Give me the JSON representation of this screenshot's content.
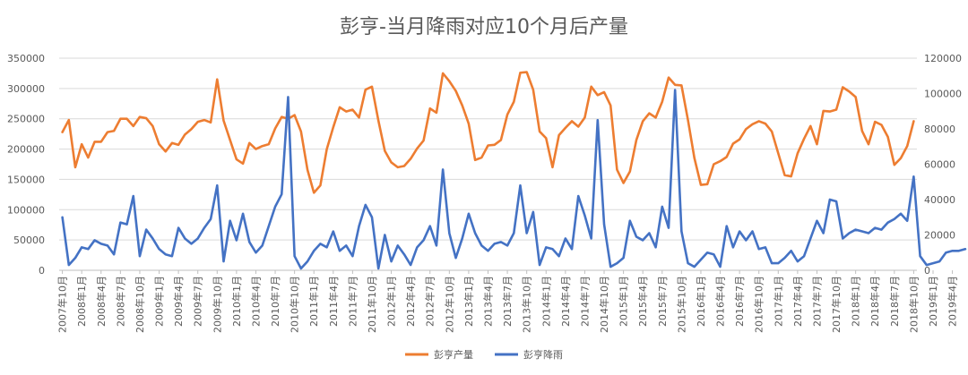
{
  "chart_data": {
    "type": "line",
    "title": "彭亨-当月降雨对应10个月后产量",
    "y_left": {
      "min": 0,
      "max": 350000,
      "ticks": [
        0,
        50000,
        100000,
        150000,
        200000,
        250000,
        300000,
        350000
      ]
    },
    "y_right": {
      "min": 0,
      "max": 120000,
      "ticks": [
        0,
        20000,
        40000,
        60000,
        80000,
        100000,
        120000
      ]
    },
    "grid": true,
    "legend_position": "bottom",
    "x_labels": [
      "2007年10月",
      "2008年1月",
      "2008年4月",
      "2008年7月",
      "2008年10月",
      "2009年1月",
      "2009年4月",
      "2009年7月",
      "2009年10月",
      "2010年1月",
      "2010年4月",
      "2010年7月",
      "2010年10月",
      "2011年1月",
      "2011年4月",
      "2011年7月",
      "2011年10月",
      "2012年1月",
      "2012年4月",
      "2012年7月",
      "2012年10月",
      "2013年1月",
      "2013年4月",
      "2013年7月",
      "2013年10月",
      "2014年1月",
      "2014年4月",
      "2014年7月",
      "2014年10月",
      "2015年1月",
      "2015年4月",
      "2015年7月",
      "2015年10月",
      "2016年1月",
      "2016年4月",
      "2016年7月",
      "2016年10月",
      "2017年1月",
      "2017年4月",
      "2017年7月",
      "2017年10月",
      "2018年1月",
      "2018年4月",
      "2018年7月",
      "2018年10月",
      "2019年1月",
      "2019年4月"
    ],
    "series": [
      {
        "name": "彭亨产量",
        "axis": "left",
        "color": "#ED7D31",
        "values": [
          228000,
          248000,
          170000,
          208000,
          186000,
          212000,
          212000,
          228000,
          230000,
          250000,
          250000,
          238000,
          253000,
          251000,
          238000,
          208000,
          196000,
          210000,
          207000,
          224000,
          233000,
          245000,
          248000,
          244000,
          315000,
          247000,
          215000,
          183000,
          176000,
          210000,
          200000,
          205000,
          208000,
          234000,
          253000,
          250000,
          256000,
          229000,
          166000,
          128000,
          140000,
          200000,
          236000,
          269000,
          262000,
          265000,
          252000,
          298000,
          303000,
          247000,
          197000,
          178000,
          170000,
          172000,
          184000,
          201000,
          214000,
          267000,
          260000,
          325000,
          312000,
          296000,
          272000,
          242000,
          182000,
          186000,
          206000,
          207000,
          215000,
          257000,
          278000,
          326000,
          327000,
          298000,
          229000,
          218000,
          170000,
          223000,
          235000,
          246000,
          237000,
          252000,
          303000,
          289000,
          294000,
          272000,
          166000,
          144000,
          163000,
          215000,
          246000,
          259000,
          252000,
          278000,
          318000,
          306000,
          305000,
          248000,
          185000,
          141000,
          142000,
          175000,
          180000,
          187000,
          209000,
          216000,
          233000,
          241000,
          246000,
          242000,
          229000,
          193000,
          157000,
          155000,
          193000,
          217000,
          238000,
          208000,
          263000,
          262000,
          265000,
          302000,
          295000,
          286000,
          230000,
          208000,
          245000,
          240000,
          220000,
          174000,
          185000,
          205000,
          246000
        ]
      },
      {
        "name": "彭亨降雨",
        "axis": "right",
        "color": "#4472C4",
        "values": [
          30000,
          3000,
          7000,
          13000,
          12000,
          17000,
          15000,
          14000,
          9000,
          27000,
          26000,
          42000,
          8000,
          23000,
          18000,
          12000,
          9000,
          8000,
          24000,
          18000,
          15000,
          18000,
          24000,
          29000,
          48000,
          5000,
          28000,
          17000,
          32000,
          16000,
          10000,
          14000,
          25000,
          36000,
          43000,
          98000,
          8000,
          1000,
          5000,
          11000,
          15000,
          13000,
          22000,
          11000,
          14000,
          8000,
          25000,
          37000,
          30000,
          1000,
          20000,
          5000,
          14000,
          9000,
          3000,
          13000,
          17000,
          25000,
          14000,
          57000,
          21000,
          7000,
          18000,
          32000,
          21000,
          14000,
          11000,
          15000,
          16000,
          14000,
          21000,
          48000,
          21000,
          33000,
          3000,
          13000,
          12000,
          8000,
          18000,
          12000,
          42000,
          31000,
          18000,
          85000,
          26000,
          2000,
          4000,
          7000,
          28000,
          19000,
          17000,
          21000,
          13000,
          36000,
          24000,
          102000,
          22000,
          4000,
          2000,
          6000,
          10000,
          9000,
          2000,
          25000,
          13000,
          22000,
          17000,
          22000,
          12000,
          13000,
          4000,
          4000,
          7000,
          11000,
          5000,
          8000,
          18000,
          28000,
          21000,
          40000,
          39000,
          18000,
          21000,
          23000,
          22000,
          21000,
          24000,
          23000,
          27000,
          29000,
          32000,
          28000,
          53000,
          8000,
          3000,
          4000,
          5000,
          10000,
          11000,
          11000,
          12000
        ]
      }
    ]
  }
}
